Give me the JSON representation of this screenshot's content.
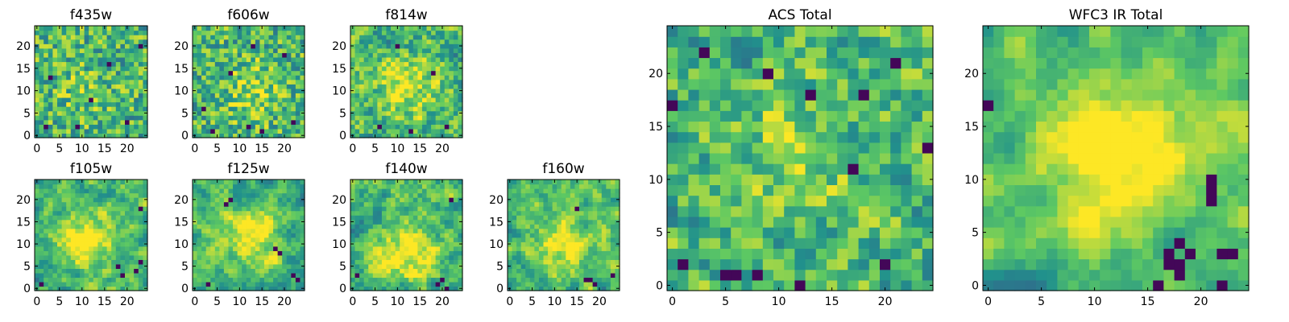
{
  "chart_data": [
    {
      "type": "heatmap",
      "title": "f435w",
      "xlim": [
        0,
        25
      ],
      "ylim": [
        0,
        25
      ],
      "xticks": [
        "0",
        "5",
        "10",
        "15",
        "20"
      ],
      "yticks": [
        "0",
        "5",
        "10",
        "15",
        "20"
      ],
      "colormap": "viridis",
      "smoothness": 0.05,
      "peak": [
        10,
        10
      ],
      "peak_strength": 0.1,
      "seed": 11,
      "dark_pixels": [
        [
          2,
          2
        ],
        [
          9,
          2
        ],
        [
          20,
          3
        ],
        [
          12,
          8
        ],
        [
          3,
          13
        ],
        [
          23,
          20
        ],
        [
          16,
          16
        ]
      ]
    },
    {
      "type": "heatmap",
      "title": "f606w",
      "xlim": [
        0,
        25
      ],
      "ylim": [
        0,
        25
      ],
      "xticks": [
        "0",
        "5",
        "10",
        "15",
        "20"
      ],
      "yticks": [
        "0",
        "5",
        "10",
        "15",
        "20"
      ],
      "colormap": "viridis",
      "smoothness": 0.1,
      "peak": [
        13,
        10
      ],
      "peak_strength": 0.2,
      "seed": 23,
      "dark_pixels": [
        [
          4,
          1
        ],
        [
          15,
          1
        ],
        [
          12,
          2
        ],
        [
          22,
          3
        ],
        [
          8,
          14
        ],
        [
          13,
          20
        ],
        [
          20,
          18
        ],
        [
          2,
          6
        ]
      ]
    },
    {
      "type": "heatmap",
      "title": "f814w",
      "xlim": [
        0,
        25
      ],
      "ylim": [
        0,
        25
      ],
      "xticks": [
        "0",
        "5",
        "10",
        "15",
        "20"
      ],
      "yticks": [
        "0",
        "5",
        "10",
        "15",
        "20"
      ],
      "colormap": "viridis",
      "smoothness": 0.3,
      "peak": [
        12,
        11
      ],
      "peak_strength": 0.3,
      "seed": 37,
      "dark_pixels": [
        [
          13,
          1
        ],
        [
          21,
          2
        ],
        [
          6,
          2
        ],
        [
          10,
          20
        ],
        [
          18,
          14
        ]
      ]
    },
    {
      "type": "heatmap",
      "title": "f105w",
      "xlim": [
        0,
        25
      ],
      "ylim": [
        0,
        25
      ],
      "xticks": [
        "0",
        "5",
        "10",
        "15",
        "20"
      ],
      "yticks": [
        "0",
        "5",
        "10",
        "15",
        "20"
      ],
      "colormap": "viridis",
      "smoothness": 0.6,
      "peak": [
        11,
        11
      ],
      "peak_strength": 0.45,
      "seed": 41,
      "dark_pixels": [
        [
          22,
          4
        ],
        [
          19,
          3
        ],
        [
          18,
          5
        ],
        [
          1,
          1
        ],
        [
          23,
          6
        ],
        [
          23,
          18
        ]
      ]
    },
    {
      "type": "heatmap",
      "title": "f125w",
      "xlim": [
        0,
        25
      ],
      "ylim": [
        0,
        25
      ],
      "xticks": [
        "0",
        "5",
        "10",
        "15",
        "20"
      ],
      "yticks": [
        "0",
        "5",
        "10",
        "15",
        "20"
      ],
      "colormap": "viridis",
      "smoothness": 0.6,
      "peak": [
        13,
        12
      ],
      "peak_strength": 0.35,
      "seed": 53,
      "dark_pixels": [
        [
          7,
          19
        ],
        [
          8,
          20
        ],
        [
          22,
          3
        ],
        [
          23,
          2
        ],
        [
          3,
          1
        ],
        [
          18,
          9
        ],
        [
          19,
          8
        ]
      ]
    },
    {
      "type": "heatmap",
      "title": "f140w",
      "xlim": [
        0,
        25
      ],
      "ylim": [
        0,
        25
      ],
      "xticks": [
        "0",
        "5",
        "10",
        "15",
        "20"
      ],
      "yticks": [
        "0",
        "5",
        "10",
        "15",
        "20"
      ],
      "colormap": "viridis",
      "smoothness": 0.6,
      "peak": [
        12,
        8
      ],
      "peak_strength": 0.35,
      "seed": 67,
      "dark_pixels": [
        [
          20,
          2
        ],
        [
          19,
          1
        ],
        [
          21,
          0
        ],
        [
          1,
          3
        ],
        [
          22,
          20
        ]
      ]
    },
    {
      "type": "heatmap",
      "title": "f160w",
      "xlim": [
        0,
        25
      ],
      "ylim": [
        0,
        25
      ],
      "xticks": [
        "0",
        "5",
        "10",
        "15",
        "20"
      ],
      "yticks": [
        "0",
        "5",
        "10",
        "15",
        "20"
      ],
      "colormap": "viridis",
      "smoothness": 0.6,
      "peak": [
        12,
        10
      ],
      "peak_strength": 0.35,
      "seed": 79,
      "dark_pixels": [
        [
          17,
          2
        ],
        [
          18,
          2
        ],
        [
          19,
          1
        ],
        [
          23,
          3
        ],
        [
          15,
          18
        ]
      ]
    },
    {
      "type": "heatmap",
      "title": "ACS Total",
      "xlim": [
        0,
        25
      ],
      "ylim": [
        0,
        25
      ],
      "xticks": [
        "0",
        "5",
        "10",
        "15",
        "20"
      ],
      "yticks": [
        "0",
        "5",
        "10",
        "15",
        "20"
      ],
      "colormap": "viridis",
      "smoothness": 0.35,
      "peak": [
        12,
        12
      ],
      "peak_strength": 0.15,
      "seed": 89,
      "dark_pixels": [
        [
          3,
          22
        ],
        [
          9,
          20
        ],
        [
          17,
          11
        ],
        [
          24,
          13
        ],
        [
          0,
          17
        ],
        [
          21,
          21
        ],
        [
          5,
          1
        ],
        [
          6,
          1
        ],
        [
          8,
          1
        ],
        [
          1,
          2
        ],
        [
          13,
          18
        ],
        [
          18,
          18
        ],
        [
          20,
          2
        ],
        [
          12,
          0
        ]
      ]
    },
    {
      "type": "heatmap",
      "title": "WFC3 IR Total",
      "xlim": [
        0,
        25
      ],
      "ylim": [
        0,
        25
      ],
      "xticks": [
        "0",
        "5",
        "10",
        "15",
        "20"
      ],
      "yticks": [
        "0",
        "5",
        "10",
        "15",
        "20"
      ],
      "colormap": "viridis",
      "smoothness": 0.8,
      "peak": [
        12,
        13
      ],
      "peak_strength": 0.4,
      "seed": 97,
      "dark_pixels": [
        [
          0,
          17
        ],
        [
          17,
          3
        ],
        [
          17,
          2
        ],
        [
          18,
          2
        ],
        [
          18,
          1
        ],
        [
          16,
          0
        ],
        [
          22,
          3
        ],
        [
          23,
          3
        ],
        [
          21,
          10
        ],
        [
          21,
          9
        ],
        [
          21,
          8
        ],
        [
          18,
          4
        ],
        [
          19,
          3
        ],
        [
          22,
          0
        ]
      ]
    }
  ],
  "colors": {
    "viridis": [
      "#440154",
      "#3b528b",
      "#21918c",
      "#5ec962",
      "#fde725"
    ]
  }
}
